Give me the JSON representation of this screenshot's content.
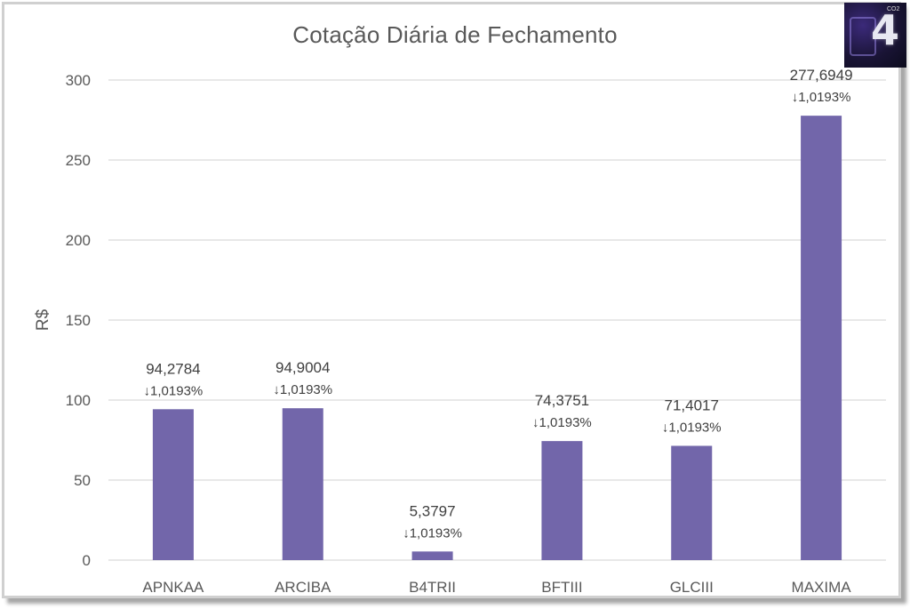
{
  "chart_data": {
    "type": "bar",
    "title": "Cotação Diária de Fechamento",
    "xlabel": "",
    "ylabel": "R$",
    "ylim": [
      0,
      300
    ],
    "yticks": [
      "0",
      "50",
      "100",
      "150",
      "200",
      "250",
      "300"
    ],
    "ytick_values": [
      0,
      50,
      100,
      150,
      200,
      250,
      300
    ],
    "grid": true,
    "categories": [
      "APNKAA",
      "ARCIBA",
      "B4TRII",
      "BFTIII",
      "GLCIII",
      "MAXIMA"
    ],
    "values": [
      94.2784,
      94.9004,
      5.3797,
      74.3751,
      71.4017,
      277.6949
    ],
    "value_labels": [
      "94,2784",
      "94,9004",
      "5,3797",
      "74,3751",
      "71,4017",
      "277,6949"
    ],
    "change_labels": [
      "↓1,0193%",
      "↓1,0193%",
      "↓1,0193%",
      "↓1,0193%",
      "↓1,0193%",
      "↓1,0193%"
    ],
    "bar_color": "#7266aa"
  },
  "logo": {
    "number": "4",
    "superscript": "CO2"
  }
}
